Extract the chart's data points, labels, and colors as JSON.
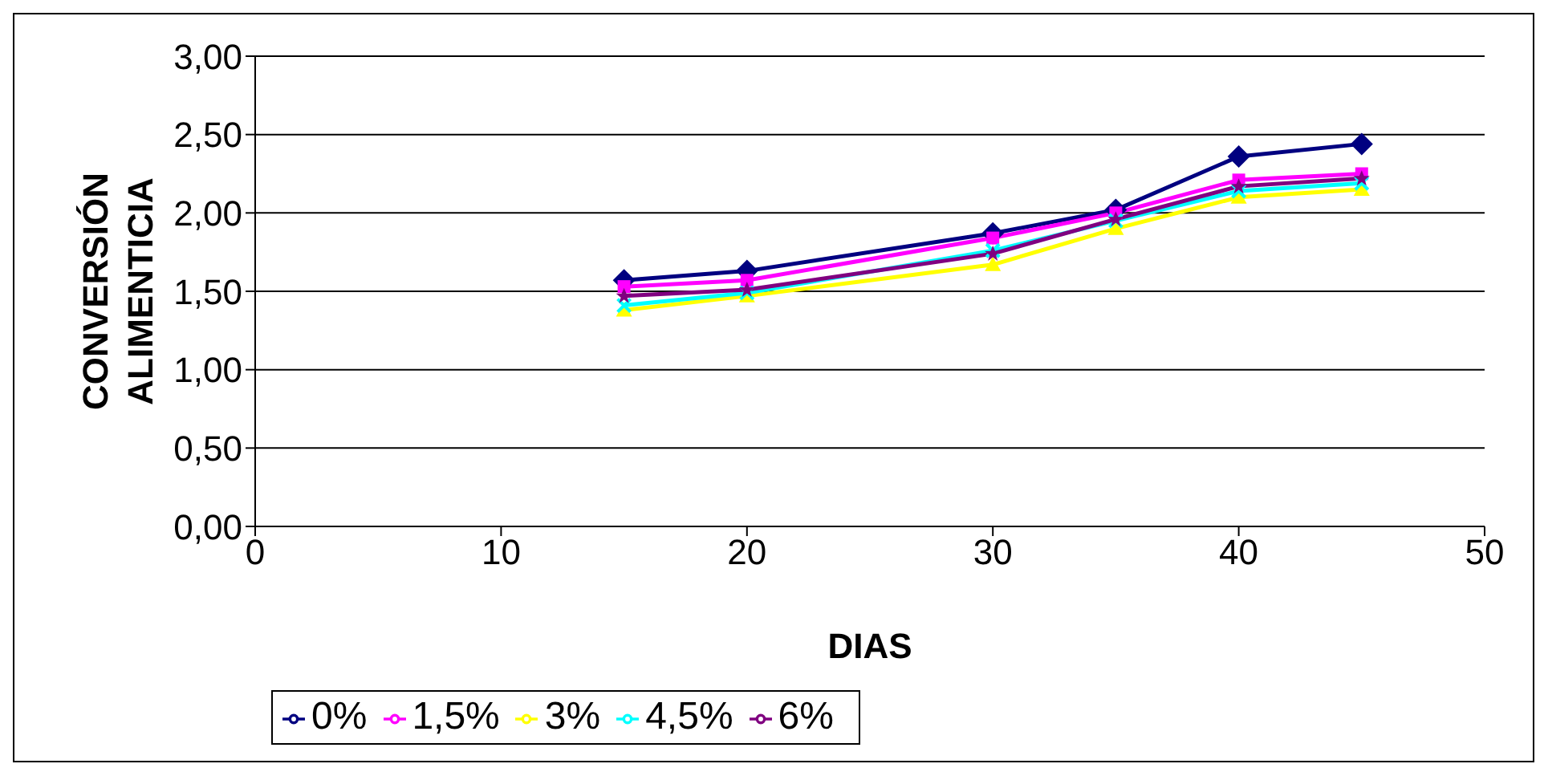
{
  "chart_data": {
    "type": "line",
    "xlabel": "DIAS",
    "ylabel": "CONVERSIÓN ALIMENTICIA",
    "x": [
      15,
      20,
      30,
      35,
      40,
      45
    ],
    "series": [
      {
        "name": "0%",
        "color": "#000080",
        "values": [
          1.57,
          1.63,
          1.87,
          2.02,
          2.36,
          2.44
        ],
        "marker": "diamond"
      },
      {
        "name": "1,5%",
        "color": "#ff00ff",
        "values": [
          1.53,
          1.57,
          1.84,
          2.0,
          2.21,
          2.25
        ],
        "marker": "square"
      },
      {
        "name": "3%",
        "color": "#ffff00",
        "values": [
          1.38,
          1.47,
          1.67,
          1.9,
          2.1,
          2.15
        ],
        "marker": "triangle"
      },
      {
        "name": "4,5%",
        "color": "#00ffff",
        "values": [
          1.41,
          1.49,
          1.76,
          1.95,
          2.14,
          2.19
        ],
        "marker": "cross"
      },
      {
        "name": "6%",
        "color": "#800080",
        "values": [
          1.47,
          1.51,
          1.74,
          1.96,
          2.17,
          2.22
        ],
        "marker": "star"
      }
    ],
    "xlim": [
      0,
      50
    ],
    "xticks": [
      0,
      10,
      20,
      30,
      40,
      50
    ],
    "ylim": [
      0,
      3
    ],
    "yticks": [
      {
        "value": 0,
        "label": "0,00"
      },
      {
        "value": 0.5,
        "label": "0,50"
      },
      {
        "value": 1,
        "label": "1,00"
      },
      {
        "value": 1.5,
        "label": "1,50"
      },
      {
        "value": 2,
        "label": "2,00"
      },
      {
        "value": 2.5,
        "label": "2,50"
      },
      {
        "value": 3,
        "label": "3,00"
      }
    ],
    "grid": "y",
    "legend": "bottom"
  }
}
